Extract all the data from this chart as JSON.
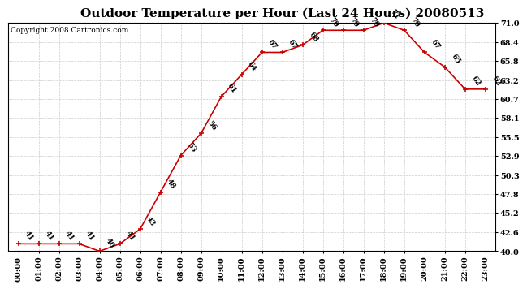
{
  "title": "Outdoor Temperature per Hour (Last 24 Hours) 20080513",
  "copyright": "Copyright 2008 Cartronics.com",
  "hours": [
    "00:00",
    "01:00",
    "02:00",
    "03:00",
    "04:00",
    "05:00",
    "06:00",
    "07:00",
    "08:00",
    "09:00",
    "10:00",
    "11:00",
    "12:00",
    "13:00",
    "14:00",
    "15:00",
    "16:00",
    "17:00",
    "18:00",
    "19:00",
    "20:00",
    "21:00",
    "22:00",
    "23:00"
  ],
  "temps": [
    41,
    41,
    41,
    41,
    40,
    41,
    43,
    48,
    53,
    56,
    61,
    64,
    67,
    67,
    68,
    70,
    70,
    70,
    71,
    70,
    67,
    65,
    62,
    62
  ],
  "line_color": "#cc0000",
  "marker_color": "#cc0000",
  "grid_color": "#cccccc",
  "bg_color": "#ffffff",
  "border_color": "#000000",
  "ylim_min": 40.0,
  "ylim_max": 71.0,
  "yticks": [
    40.0,
    42.6,
    45.2,
    47.8,
    50.3,
    52.9,
    55.5,
    58.1,
    60.7,
    63.2,
    65.8,
    68.4,
    71.0
  ],
  "title_fontsize": 11,
  "label_fontsize": 6.5,
  "tick_fontsize": 7,
  "copyright_fontsize": 6.5
}
